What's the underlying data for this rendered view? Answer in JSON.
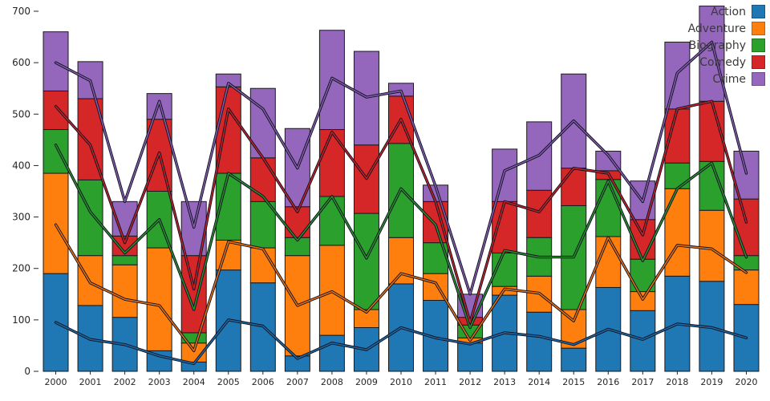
{
  "chart_data": {
    "type": "bar",
    "stacked": true,
    "title": "",
    "xlabel": "",
    "ylabel": "",
    "ylim": [
      0,
      700
    ],
    "yticks": [
      0,
      100,
      200,
      300,
      400,
      500,
      600,
      700
    ],
    "grid": false,
    "legend_position": "upper right",
    "categories": [
      "2000",
      "2001",
      "2002",
      "2003",
      "2004",
      "2005",
      "2006",
      "2007",
      "2008",
      "2009",
      "2010",
      "2011",
      "2012",
      "2013",
      "2014",
      "2015",
      "2016",
      "2017",
      "2018",
      "2019",
      "2020"
    ],
    "series": [
      {
        "name": "Action",
        "color": "#1f77b4",
        "values": [
          190,
          128,
          105,
          40,
          18,
          197,
          172,
          30,
          70,
          85,
          170,
          138,
          55,
          148,
          115,
          45,
          163,
          118,
          185,
          175,
          130
        ]
      },
      {
        "name": "Adventure",
        "color": "#ff7f0e",
        "values": [
          195,
          97,
          102,
          200,
          37,
          58,
          68,
          195,
          175,
          35,
          90,
          52,
          10,
          17,
          70,
          75,
          99,
          37,
          170,
          138,
          67
        ]
      },
      {
        "name": "Biography",
        "color": "#2ca02c",
        "values": [
          85,
          147,
          18,
          110,
          20,
          130,
          90,
          35,
          95,
          187,
          183,
          60,
          25,
          65,
          75,
          202,
          111,
          63,
          50,
          95,
          28
        ]
      },
      {
        "name": "Comedy",
        "color": "#d62728",
        "values": [
          75,
          158,
          38,
          140,
          150,
          168,
          85,
          60,
          130,
          133,
          92,
          80,
          15,
          100,
          92,
          73,
          17,
          77,
          105,
          117,
          110
        ]
      },
      {
        "name": "Crime",
        "color": "#9467bd",
        "values": [
          115,
          72,
          67,
          50,
          105,
          25,
          135,
          152,
          193,
          182,
          25,
          32,
          45,
          102,
          133,
          183,
          38,
          75,
          130,
          185,
          93
        ]
      }
    ],
    "line_overlay": {
      "description": "stacked cumulative line overlays with dark outline, one per series",
      "series": [
        {
          "name": "Action",
          "color": "#1f77b4",
          "cumulative_values": [
            95,
            62,
            52,
            30,
            15,
            100,
            88,
            25,
            55,
            42,
            85,
            65,
            53,
            75,
            68,
            52,
            82,
            62,
            92,
            85,
            65
          ]
        },
        {
          "name": "Adventure",
          "color": "#ff7f0e",
          "cumulative_values": [
            285,
            172,
            140,
            128,
            40,
            252,
            238,
            128,
            155,
            115,
            190,
            172,
            60,
            160,
            152,
            98,
            260,
            140,
            245,
            238,
            192
          ]
        },
        {
          "name": "Biography",
          "color": "#2ca02c",
          "cumulative_values": [
            440,
            310,
            230,
            295,
            120,
            385,
            340,
            255,
            340,
            220,
            355,
            285,
            85,
            235,
            222,
            222,
            370,
            215,
            355,
            405,
            222
          ]
        },
        {
          "name": "Comedy",
          "color": "#d62728",
          "cumulative_values": [
            515,
            440,
            250,
            425,
            160,
            510,
            415,
            310,
            465,
            375,
            490,
            330,
            95,
            330,
            310,
            395,
            385,
            265,
            510,
            525,
            290
          ]
        },
        {
          "name": "Crime",
          "color": "#9467bd",
          "cumulative_values": [
            600,
            565,
            330,
            525,
            280,
            560,
            510,
            395,
            570,
            533,
            545,
            360,
            150,
            390,
            420,
            487,
            420,
            330,
            580,
            640,
            385
          ]
        }
      ]
    },
    "legend_labels": [
      "Action",
      "Adventure",
      "Biography",
      "Comedy",
      "Crime"
    ]
  },
  "style": {
    "bar_edge_color": "#1a1a1a",
    "line_outline_color": "#111122",
    "tick_color": "#262626",
    "background": "#ffffff"
  }
}
